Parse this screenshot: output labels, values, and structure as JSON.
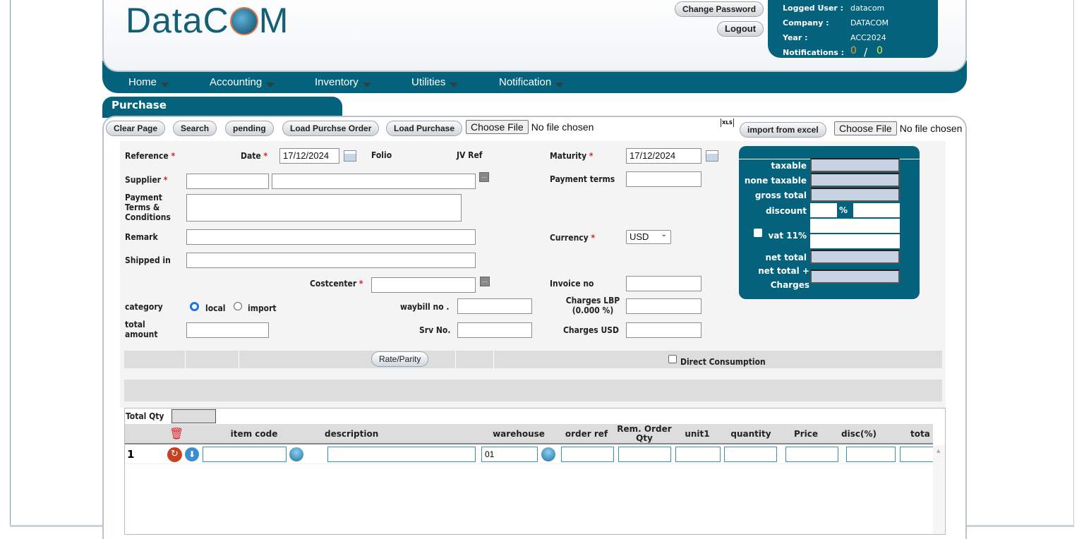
{
  "header": {
    "logo": "DataCOM",
    "change_password": "Change Password",
    "logout": "Logout",
    "info": {
      "user_label": "Logged User :",
      "user": "datacom",
      "company_label": "Company :",
      "company": "DATACOM",
      "year_label": "Year :",
      "year": "ACC2024",
      "notif_label": "Notifications :",
      "notif_a": "0",
      "notif_sep": "/",
      "notif_b": "0"
    }
  },
  "nav": [
    "Home",
    "Accounting",
    "Inventory",
    "Utilities",
    "Notification"
  ],
  "page_title": "Purchase",
  "toolbar": {
    "clear": "Clear Page",
    "search": "Search",
    "pending": "pending",
    "load_order": "Load Purchse Order",
    "load_purchase": "Load Purchase",
    "choose_file": "Choose File",
    "no_file": "No file chosen",
    "xls_icon": "XLS",
    "import_excel": "import from excel"
  },
  "form": {
    "reference": "Reference",
    "date": "Date",
    "date_value": "17/12/2024",
    "folio": "Folio",
    "jv_ref": "JV Ref",
    "maturity": "Maturity",
    "maturity_value": "17/12/2024",
    "supplier": "Supplier",
    "payment_terms": "Payment terms",
    "payment_terms_conditions": "Payment Terms & Conditions",
    "remark": "Remark",
    "currency": "Currency",
    "currency_value": "USD",
    "shipped_in": "Shipped in",
    "costcenter": "Costcenter",
    "invoice_no": "Invoice no",
    "category": "category",
    "local": "local",
    "import": "import",
    "waybill": "waybill no .",
    "charges_lbp": "Charges LBP (0.000 %)",
    "total_amount": "total amount",
    "srv_no": "Srv No.",
    "charges_usd": "Charges USD",
    "rate_parity": "Rate/Parity",
    "direct_consumption": "Direct Consumption"
  },
  "summary": {
    "taxable": "taxable",
    "none_taxable": "none taxable",
    "gross_total": "gross total",
    "discount": "discount",
    "percent": "%",
    "vat": "vat 11%",
    "net_total": "net total",
    "net_total_charges": "net total + Charges"
  },
  "grid": {
    "total_qty": "Total Qty",
    "columns": [
      "item code",
      "description",
      "warehouse",
      "order ref",
      "Rem. Order Qty",
      "unit1",
      "quantity",
      "Price",
      "disc(%)",
      "tota"
    ],
    "rows": [
      {
        "no": "1",
        "warehouse": "01"
      }
    ]
  },
  "colors": {
    "brand": "#04627c",
    "required": "#e02020"
  }
}
